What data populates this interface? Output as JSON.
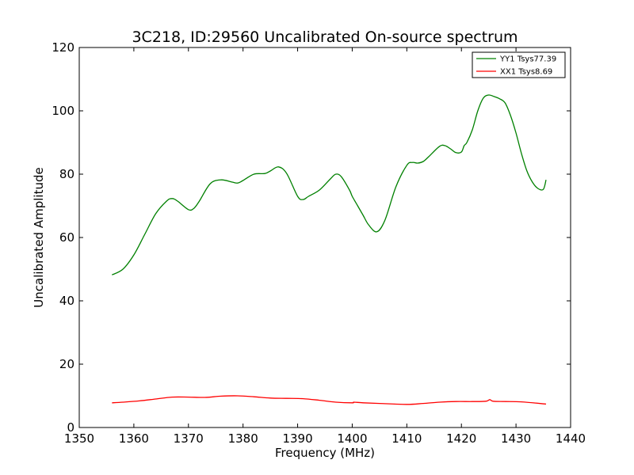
{
  "chart_data": {
    "type": "line",
    "title": "3C218, ID:29560 Uncalibrated On-source spectrum",
    "xlabel": "Frequency (MHz)",
    "ylabel": "Uncalibrated Amplitude",
    "xlim": [
      1350,
      1440
    ],
    "ylim": [
      0,
      120
    ],
    "xticks": [
      1350,
      1360,
      1370,
      1380,
      1390,
      1400,
      1410,
      1420,
      1430,
      1440
    ],
    "yticks": [
      0,
      20,
      40,
      60,
      80,
      100,
      120
    ],
    "grid": false,
    "legend_position": "top-right",
    "series": [
      {
        "name": "YY1 Tsys77.39",
        "color": "#008000",
        "x": [
          1356,
          1358,
          1360,
          1362,
          1364,
          1366,
          1367,
          1368,
          1370,
          1371,
          1372,
          1374,
          1376,
          1378,
          1379,
          1380,
          1382,
          1384,
          1385,
          1386.5,
          1388,
          1390,
          1391,
          1392,
          1394,
          1396,
          1397,
          1398,
          1399.5,
          1400,
          1401,
          1402,
          1403,
          1404.5,
          1406,
          1408,
          1410,
          1411,
          1412,
          1413,
          1414,
          1416,
          1417,
          1418,
          1419,
          1420,
          1420.5,
          1421,
          1422,
          1423,
          1424,
          1425,
          1426,
          1427,
          1428,
          1429,
          1430,
          1431,
          1432,
          1433,
          1434,
          1435,
          1435.5
        ],
        "y": [
          48.2,
          50,
          54.5,
          61,
          67.5,
          71.5,
          72.3,
          71.5,
          68.8,
          69.2,
          71.5,
          77,
          78.2,
          77.5,
          77.2,
          78,
          80,
          80.2,
          81,
          82.3,
          80.2,
          73,
          72,
          73,
          75,
          78.5,
          80,
          79.2,
          75,
          73,
          70,
          67,
          64,
          61.8,
          65.5,
          76,
          82.8,
          83.7,
          83.5,
          84,
          85.5,
          88.8,
          89,
          88,
          86.8,
          87,
          89,
          90,
          94,
          100,
          104,
          105,
          104.5,
          103.8,
          102.5,
          98.5,
          93,
          86.5,
          81,
          77.5,
          75.5,
          75.2,
          78.2
        ]
      },
      {
        "name": "XX1 Tsys8.69",
        "color": "#ff0000",
        "x": [
          1356,
          1358,
          1361,
          1364,
          1367,
          1370,
          1373,
          1376,
          1379,
          1382,
          1385,
          1388,
          1391,
          1394,
          1397,
          1400,
          1400.3,
          1402,
          1405,
          1410,
          1413,
          1416,
          1419,
          1422,
          1424.5,
          1425.2,
          1425.8,
          1428,
          1431,
          1435.5
        ],
        "y": [
          7.8,
          8,
          8.4,
          9,
          9.6,
          9.6,
          9.5,
          9.9,
          10,
          9.7,
          9.3,
          9.2,
          9.1,
          8.6,
          8,
          7.8,
          8,
          7.8,
          7.6,
          7.3,
          7.6,
          8,
          8.2,
          8.2,
          8.3,
          8.8,
          8.3,
          8.2,
          8.1,
          7.4
        ]
      }
    ]
  }
}
